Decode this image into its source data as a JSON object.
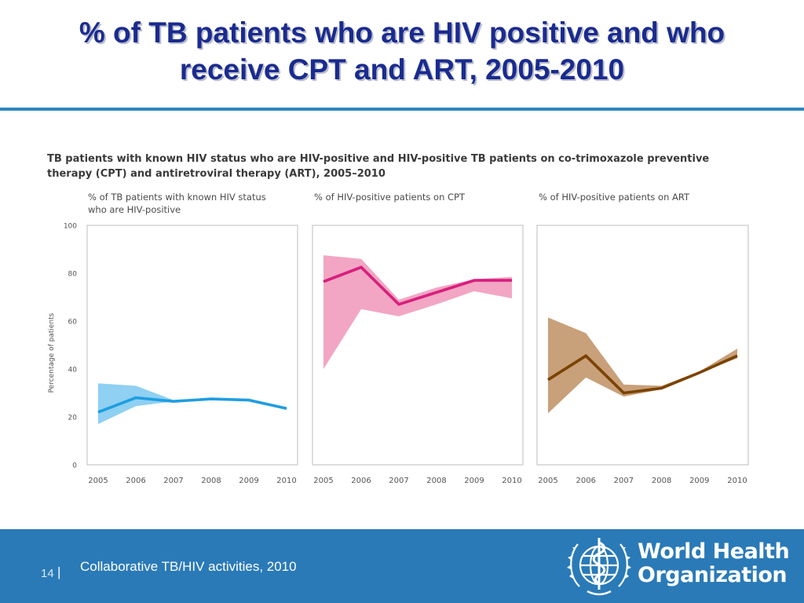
{
  "slide": {
    "title_line1": "% of TB patients who are HIV positive and who",
    "title_line2": "receive CPT and ART, 2005-2010",
    "page_number": "14",
    "separator": "|",
    "footer_text": "Collaborative TB/HIV activities, 2010"
  },
  "figure": {
    "caption_line1": "TB patients with known HIV status who are HIV-positive and HIV-positive TB patients on co-trimoxazole preventive",
    "caption_line2": "therapy (CPT) and antiretroviral therapy (ART), 2005–2010"
  },
  "brand": {
    "line1": "World Health",
    "line2": "Organization"
  },
  "chart_data": [
    {
      "type": "line",
      "title_lines": [
        "% of TB patients with known HIV status",
        "who are HIV-positive"
      ],
      "ylabel": "Percentage of patients",
      "x": [
        2005,
        2006,
        2007,
        2008,
        2009,
        2010
      ],
      "ylim": [
        0,
        100
      ],
      "yticks": [
        0,
        20,
        40,
        60,
        80,
        100
      ],
      "series": [
        {
          "values": [
            22,
            28,
            26.5,
            27.5,
            27,
            23.5
          ],
          "lower": [
            17,
            24.5,
            26.5,
            27.5,
            27,
            23
          ],
          "upper": [
            34,
            33,
            27,
            27.5,
            27,
            24
          ],
          "line_color": "#1f9ee0",
          "band_color": "#8fd0f3"
        }
      ]
    },
    {
      "type": "line",
      "title_lines": [
        "% of HIV-positive patients on CPT"
      ],
      "x": [
        2005,
        2006,
        2007,
        2008,
        2009,
        2010
      ],
      "ylim": [
        0,
        100
      ],
      "series": [
        {
          "values": [
            76.5,
            82.5,
            67,
            72,
            77,
            77
          ],
          "lower": [
            40,
            65,
            62,
            67,
            72.5,
            69.5
          ],
          "upper": [
            87.5,
            86,
            69,
            74,
            77.5,
            78.5
          ],
          "line_color": "#d81f7e",
          "band_color": "#f2a6c3"
        }
      ]
    },
    {
      "type": "line",
      "title_lines": [
        "% of HIV-positive patients on ART"
      ],
      "x": [
        2005,
        2006,
        2007,
        2008,
        2009,
        2010
      ],
      "ylim": [
        0,
        100
      ],
      "series": [
        {
          "values": [
            35.5,
            45.5,
            30,
            32,
            38.5,
            45.5
          ],
          "lower": [
            21.5,
            36.5,
            28.5,
            31.5,
            38.5,
            44.5
          ],
          "upper": [
            61.5,
            55,
            33.5,
            33,
            39,
            48.5
          ],
          "line_color": "#7a4300",
          "band_color": "#c8a07a"
        }
      ]
    }
  ]
}
